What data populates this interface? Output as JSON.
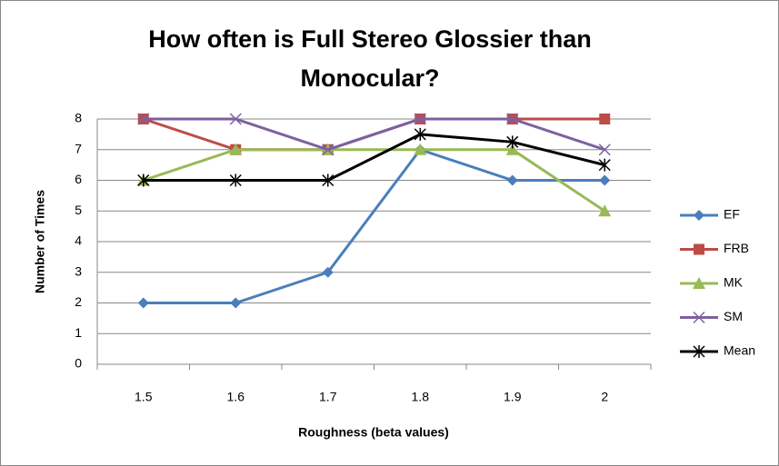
{
  "chart_data": {
    "type": "line",
    "title": "How often is Full Stereo Glossier than Monocular?",
    "x_label": "Roughness (beta values)",
    "y_label": "Number of Times",
    "categories": [
      "1.5",
      "1.6",
      "1.7",
      "1.8",
      "1.9",
      "2"
    ],
    "series": [
      {
        "name": "EF",
        "color": "#4a7ebb",
        "marker": "diamond",
        "values": [
          2,
          2,
          3,
          7,
          6,
          6
        ]
      },
      {
        "name": "FRB",
        "color": "#be4b48",
        "marker": "square",
        "values": [
          8,
          7,
          7,
          8,
          8,
          8
        ]
      },
      {
        "name": "MK",
        "color": "#98b954",
        "marker": "triangle",
        "values": [
          6,
          7,
          7,
          7,
          7,
          5
        ]
      },
      {
        "name": "SM",
        "color": "#7d60a0",
        "marker": "x",
        "values": [
          8,
          8,
          7,
          8,
          8,
          7
        ]
      },
      {
        "name": "Mean",
        "color": "#000000",
        "marker": "star",
        "values": [
          6,
          6,
          6,
          7.5,
          7.25,
          6.5
        ]
      }
    ],
    "ylim": [
      0,
      8
    ],
    "yticks": [
      0,
      1,
      2,
      3,
      4,
      5,
      6,
      7,
      8
    ],
    "grid": true,
    "legend": "right"
  }
}
